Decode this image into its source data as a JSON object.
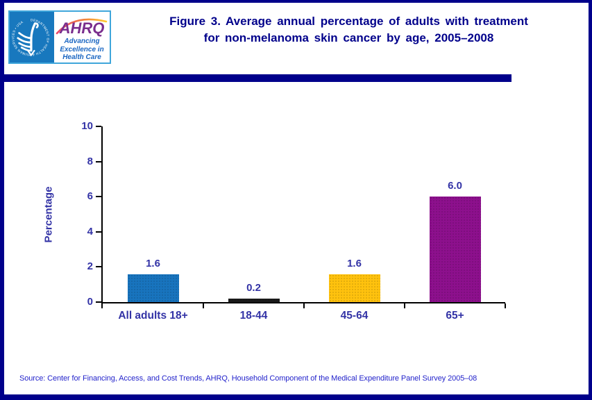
{
  "header": {
    "title_line1": "Figure 3. Average annual percentage of adults with treatment",
    "title_line2": "for non-melanoma skin cancer by age, 2005–2008"
  },
  "logo": {
    "hhs_seal_text": "DEPARTMENT OF HEALTH & HUMAN SERVICES • USA",
    "ahrq_wordmark": "AHRQ",
    "tagline": [
      "Advancing",
      "Excellence in",
      "Health Care"
    ]
  },
  "chart_data": {
    "type": "bar",
    "title": "Figure 3. Average annual percentage of adults with treatment for non-melanoma skin cancer by age, 2005–2008",
    "categories": [
      "All adults 18+",
      "18-44",
      "45-64",
      "65+"
    ],
    "values": [
      1.6,
      0.2,
      1.6,
      6.0
    ],
    "value_labels": [
      "1.6",
      "0.2",
      "1.6",
      "6.0"
    ],
    "bar_colors": [
      "#1874BE",
      "#1A1A1A",
      "#FFC20E",
      "#8D108D"
    ],
    "ylabel": "Percentage",
    "xlabel": "",
    "yticks": [
      0,
      2,
      4,
      6,
      8,
      10
    ],
    "ylim": [
      0,
      10
    ],
    "grid": false,
    "legend": "none"
  },
  "footer": {
    "source": "Source: Center for Financing, Access, and Cost Trends, AHRQ,  Household Component of the Medical Expenditure Panel Survey  2005–08"
  },
  "colors": {
    "page_border": "#00008B",
    "divider": "#00008B",
    "title_text": "#00008B",
    "axis_label_text": "#3333A6",
    "source_text": "#2323CB",
    "hhs_blue": "#1878BE",
    "ahrq_purple": "#7A2E8D",
    "tagline_blue": "#1A66C2"
  }
}
